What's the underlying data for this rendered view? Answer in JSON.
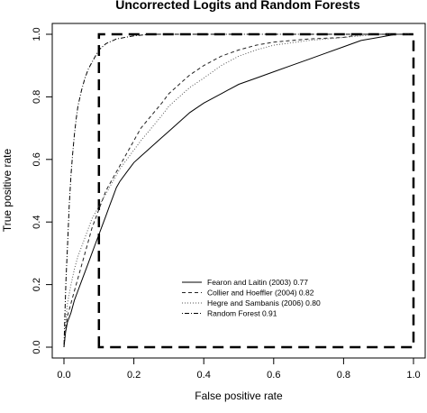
{
  "chart_data": {
    "type": "line",
    "title": "Uncorrected Logits and Random Forests",
    "xlabel": "False positive rate",
    "ylabel": "True positive rate",
    "xlim": [
      0,
      1
    ],
    "ylim": [
      0,
      1
    ],
    "x_ticks": [
      "0.0",
      "0.2",
      "0.4",
      "0.6",
      "0.8",
      "1.0"
    ],
    "y_ticks": [
      "0.0",
      "0.2",
      "0.4",
      "0.6",
      "0.8",
      "1.0"
    ],
    "grid": false,
    "legend_position": "bottom-right",
    "series": [
      {
        "name": "Fearon and Laitin (2003) 0.77",
        "style": "solid",
        "points": [
          [
            0,
            0
          ],
          [
            0.005,
            0.05
          ],
          [
            0.01,
            0.08
          ],
          [
            0.02,
            0.11
          ],
          [
            0.03,
            0.15
          ],
          [
            0.04,
            0.18
          ],
          [
            0.05,
            0.21
          ],
          [
            0.06,
            0.24
          ],
          [
            0.07,
            0.27
          ],
          [
            0.08,
            0.3
          ],
          [
            0.09,
            0.33
          ],
          [
            0.1,
            0.36
          ],
          [
            0.11,
            0.39
          ],
          [
            0.12,
            0.42
          ],
          [
            0.13,
            0.45
          ],
          [
            0.14,
            0.48
          ],
          [
            0.15,
            0.51
          ],
          [
            0.16,
            0.53
          ],
          [
            0.18,
            0.56
          ],
          [
            0.2,
            0.59
          ],
          [
            0.22,
            0.61
          ],
          [
            0.24,
            0.63
          ],
          [
            0.26,
            0.65
          ],
          [
            0.28,
            0.67
          ],
          [
            0.3,
            0.69
          ],
          [
            0.33,
            0.72
          ],
          [
            0.36,
            0.75
          ],
          [
            0.4,
            0.78
          ],
          [
            0.45,
            0.81
          ],
          [
            0.5,
            0.84
          ],
          [
            0.55,
            0.86
          ],
          [
            0.6,
            0.88
          ],
          [
            0.65,
            0.9
          ],
          [
            0.7,
            0.92
          ],
          [
            0.75,
            0.94
          ],
          [
            0.8,
            0.96
          ],
          [
            0.85,
            0.98
          ],
          [
            0.9,
            0.99
          ],
          [
            0.95,
            1.0
          ],
          [
            1.0,
            1.0
          ]
        ]
      },
      {
        "name": "Collier and Hoeffler (2004) 0.82",
        "style": "dashed",
        "points": [
          [
            0,
            0
          ],
          [
            0.005,
            0.06
          ],
          [
            0.01,
            0.1
          ],
          [
            0.02,
            0.14
          ],
          [
            0.03,
            0.18
          ],
          [
            0.04,
            0.22
          ],
          [
            0.05,
            0.26
          ],
          [
            0.06,
            0.3
          ],
          [
            0.07,
            0.34
          ],
          [
            0.08,
            0.38
          ],
          [
            0.09,
            0.41
          ],
          [
            0.1,
            0.44
          ],
          [
            0.11,
            0.47
          ],
          [
            0.12,
            0.5
          ],
          [
            0.14,
            0.54
          ],
          [
            0.16,
            0.58
          ],
          [
            0.18,
            0.62
          ],
          [
            0.2,
            0.66
          ],
          [
            0.22,
            0.7
          ],
          [
            0.25,
            0.74
          ],
          [
            0.28,
            0.78
          ],
          [
            0.3,
            0.81
          ],
          [
            0.33,
            0.84
          ],
          [
            0.36,
            0.87
          ],
          [
            0.4,
            0.9
          ],
          [
            0.45,
            0.93
          ],
          [
            0.5,
            0.95
          ],
          [
            0.55,
            0.965
          ],
          [
            0.6,
            0.975
          ],
          [
            0.7,
            0.985
          ],
          [
            0.8,
            0.99
          ],
          [
            0.85,
            1.0
          ],
          [
            1.0,
            1.0
          ]
        ]
      },
      {
        "name": "Hegre and Sambanis (2006) 0.80",
        "style": "dotted",
        "points": [
          [
            0,
            0
          ],
          [
            0.005,
            0.08
          ],
          [
            0.01,
            0.14
          ],
          [
            0.02,
            0.2
          ],
          [
            0.03,
            0.25
          ],
          [
            0.04,
            0.29
          ],
          [
            0.05,
            0.32
          ],
          [
            0.06,
            0.35
          ],
          [
            0.07,
            0.38
          ],
          [
            0.08,
            0.41
          ],
          [
            0.1,
            0.45
          ],
          [
            0.12,
            0.49
          ],
          [
            0.14,
            0.53
          ],
          [
            0.16,
            0.57
          ],
          [
            0.18,
            0.6
          ],
          [
            0.2,
            0.63
          ],
          [
            0.22,
            0.66
          ],
          [
            0.25,
            0.7
          ],
          [
            0.28,
            0.74
          ],
          [
            0.3,
            0.77
          ],
          [
            0.33,
            0.8
          ],
          [
            0.36,
            0.83
          ],
          [
            0.4,
            0.86
          ],
          [
            0.45,
            0.9
          ],
          [
            0.5,
            0.93
          ],
          [
            0.55,
            0.95
          ],
          [
            0.6,
            0.965
          ],
          [
            0.7,
            0.98
          ],
          [
            0.8,
            0.99
          ],
          [
            0.9,
            1.0
          ],
          [
            1.0,
            1.0
          ]
        ]
      },
      {
        "name": "Random Forest 0.91",
        "style": "dotdash",
        "points": [
          [
            0,
            0
          ],
          [
            0.003,
            0.12
          ],
          [
            0.006,
            0.22
          ],
          [
            0.01,
            0.32
          ],
          [
            0.015,
            0.45
          ],
          [
            0.02,
            0.55
          ],
          [
            0.025,
            0.62
          ],
          [
            0.03,
            0.68
          ],
          [
            0.035,
            0.73
          ],
          [
            0.04,
            0.77
          ],
          [
            0.05,
            0.82
          ],
          [
            0.06,
            0.86
          ],
          [
            0.07,
            0.89
          ],
          [
            0.08,
            0.91
          ],
          [
            0.09,
            0.93
          ],
          [
            0.1,
            0.95
          ],
          [
            0.12,
            0.97
          ],
          [
            0.15,
            0.985
          ],
          [
            0.2,
            0.995
          ],
          [
            0.25,
            1.0
          ],
          [
            1.0,
            1.0
          ]
        ]
      }
    ],
    "reference_box": {
      "x": [
        0.1,
        1.0
      ],
      "y": [
        0.0,
        1.0
      ],
      "style": "long-dash"
    }
  }
}
